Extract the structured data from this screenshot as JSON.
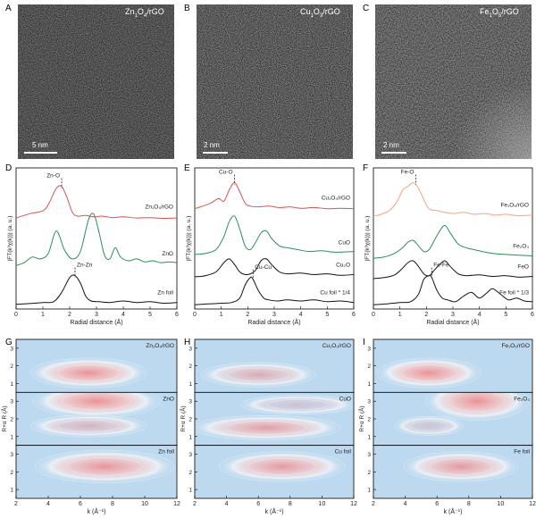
{
  "panel_labels": [
    "A",
    "B",
    "C",
    "D",
    "E",
    "F",
    "G",
    "H",
    "I"
  ],
  "tem": [
    {
      "label": "A",
      "title_main": "Zn",
      "title_sub1": "1",
      "title_mid": "O",
      "title_sub2": "4",
      "title_end": "/rGO",
      "scale": "5 nm"
    },
    {
      "label": "B",
      "title_main": "Cu",
      "title_sub1": "1",
      "title_mid": "O",
      "title_sub2": "3",
      "title_end": "/rGO",
      "scale": "2 nm"
    },
    {
      "label": "C",
      "title_main": "Fe",
      "title_sub1": "1",
      "title_mid": "O",
      "title_sub2": "5",
      "title_end": "/rGO",
      "scale": "2 nm"
    }
  ],
  "chart_data": [
    {
      "type": "line",
      "panel": "D",
      "xlabel": "Radial distance (Å)",
      "ylabel": "|FT(k³χ(k))| (a. u.)",
      "xlim": [
        0,
        6
      ],
      "xticks": [
        0,
        1,
        2,
        3,
        4,
        5,
        6
      ],
      "annotations": [
        {
          "text": "Zn-O",
          "x": 1.7
        },
        {
          "text": "Zn-Zn",
          "x": 2.2
        }
      ],
      "series": [
        {
          "name": "Zn₁O₄/rGO",
          "color": "#d9534f",
          "offset": 2.3,
          "x": [
            0,
            0.3,
            0.6,
            0.9,
            1.1,
            1.3,
            1.5,
            1.7,
            1.9,
            2.1,
            2.3,
            2.6,
            2.9,
            3.2,
            3.6,
            4,
            4.5,
            5,
            5.5,
            6
          ],
          "y": [
            0.05,
            0.12,
            0.18,
            0.22,
            0.3,
            0.55,
            0.85,
            0.9,
            0.6,
            0.2,
            0.1,
            0.12,
            0.08,
            0.1,
            0.06,
            0.08,
            0.05,
            0.06,
            0.04,
            0.05
          ]
        },
        {
          "name": "ZnO",
          "color": "#2a8f5a",
          "offset": 1.05,
          "x": [
            0,
            0.3,
            0.6,
            0.9,
            1.2,
            1.5,
            1.8,
            2.1,
            2.4,
            2.7,
            2.9,
            3.1,
            3.3,
            3.5,
            3.7,
            3.9,
            4.2,
            4.5,
            4.8,
            5.1,
            5.4,
            5.7,
            6
          ],
          "y": [
            0.02,
            0.1,
            0.25,
            0.2,
            0.35,
            0.95,
            0.45,
            0.2,
            0.4,
            1.25,
            1.4,
            0.9,
            0.3,
            0.2,
            0.5,
            0.25,
            0.15,
            0.2,
            0.12,
            0.15,
            0.1,
            0.12,
            0.1
          ]
        },
        {
          "name": "Zn foil",
          "color": "#111111",
          "offset": 0,
          "x": [
            0,
            0.5,
            1,
            1.4,
            1.7,
            2,
            2.2,
            2.4,
            2.6,
            2.8,
            3.1,
            3.5,
            4,
            4.5,
            5,
            5.5,
            6
          ],
          "y": [
            0.03,
            0.05,
            0.08,
            0.1,
            0.35,
            0.75,
            0.8,
            0.6,
            0.25,
            0.12,
            0.1,
            0.08,
            0.12,
            0.08,
            0.1,
            0.06,
            0.08
          ]
        }
      ]
    },
    {
      "type": "line",
      "panel": "E",
      "xlabel": "Radial distance (Å)",
      "ylabel": "|FT(k³χ(k))| (a. u.)",
      "xlim": [
        0,
        6
      ],
      "xticks": [
        0,
        1,
        2,
        3,
        4,
        5,
        6
      ],
      "annotations": [
        {
          "text": "Cu-O",
          "x": 1.5
        },
        {
          "text": "Cu-Cu",
          "x": 2.2
        }
      ],
      "series": [
        {
          "name": "Cu₁O₃/rGO",
          "color": "#d9534f",
          "offset": 2.55,
          "x": [
            0,
            0.3,
            0.6,
            0.9,
            1.1,
            1.3,
            1.5,
            1.7,
            1.9,
            2.1,
            2.4,
            2.8,
            3.2,
            3.6,
            4,
            4.5,
            5,
            5.5,
            6
          ],
          "y": [
            0.05,
            0.12,
            0.2,
            0.32,
            0.25,
            0.55,
            0.75,
            0.5,
            0.2,
            0.12,
            0.1,
            0.12,
            0.08,
            0.1,
            0.06,
            0.08,
            0.05,
            0.06,
            0.05
          ]
        },
        {
          "name": "CuO",
          "color": "#2a8f5a",
          "offset": 1.35,
          "x": [
            0,
            0.4,
            0.8,
            1.1,
            1.3,
            1.5,
            1.7,
            1.9,
            2.1,
            2.3,
            2.5,
            2.7,
            2.9,
            3.2,
            3.5,
            3.9,
            4.3,
            4.8,
            5.3,
            6
          ],
          "y": [
            0.02,
            0.05,
            0.15,
            0.5,
            0.9,
            1.05,
            0.7,
            0.25,
            0.15,
            0.35,
            0.6,
            0.65,
            0.45,
            0.25,
            0.2,
            0.15,
            0.1,
            0.12,
            0.08,
            0.1
          ]
        },
        {
          "name": "Cu₂O",
          "color": "#111111",
          "offset": 0.75,
          "x": [
            0,
            0.4,
            0.8,
            1.1,
            1.3,
            1.5,
            1.7,
            1.9,
            2.1,
            2.3,
            2.5,
            2.7,
            2.9,
            3.2,
            3.5,
            4,
            4.5,
            5,
            5.5,
            6
          ],
          "y": [
            0.02,
            0.05,
            0.15,
            0.4,
            0.5,
            0.35,
            0.15,
            0.08,
            0.1,
            0.2,
            0.45,
            0.5,
            0.35,
            0.15,
            0.1,
            0.12,
            0.08,
            0.1,
            0.06,
            0.08
          ]
        },
        {
          "name": "Cu foil * 1/4",
          "color": "#111111",
          "offset": 0,
          "x": [
            0,
            0.5,
            1,
            1.4,
            1.7,
            1.9,
            2.1,
            2.2,
            2.4,
            2.6,
            2.8,
            3.1,
            3.5,
            4,
            4.5,
            5,
            5.5,
            6
          ],
          "y": [
            0.02,
            0.04,
            0.06,
            0.08,
            0.2,
            0.55,
            0.75,
            0.7,
            0.4,
            0.2,
            0.15,
            0.12,
            0.15,
            0.12,
            0.15,
            0.1,
            0.12,
            0.08
          ]
        }
      ]
    },
    {
      "type": "line",
      "panel": "F",
      "xlabel": "Radial distance (Å)",
      "ylabel": "|FT(k³χ(k))| (a. u.)",
      "xlim": [
        0,
        6
      ],
      "xticks": [
        0,
        1,
        2,
        3,
        4,
        5,
        6
      ],
      "annotations": [
        {
          "text": "Fe-O",
          "x": 1.6
        },
        {
          "text": "Fe-Fe",
          "x": 2.2
        }
      ],
      "series": [
        {
          "name": "Fe₁O₅/rGO",
          "color": "#f0a58a",
          "offset": 2.35,
          "x": [
            0,
            0.3,
            0.6,
            0.9,
            1.1,
            1.3,
            1.5,
            1.7,
            1.9,
            2.1,
            2.4,
            2.7,
            3,
            3.4,
            3.8,
            4.2,
            4.6,
            5,
            5.5,
            6
          ],
          "y": [
            0.05,
            0.1,
            0.2,
            0.45,
            0.75,
            0.85,
            0.95,
            0.8,
            0.5,
            0.25,
            0.2,
            0.15,
            0.12,
            0.15,
            0.1,
            0.12,
            0.08,
            0.1,
            0.06,
            0.08
          ]
        },
        {
          "name": "Fe₂O₃",
          "color": "#2a8f5a",
          "offset": 1.25,
          "x": [
            0,
            0.4,
            0.8,
            1.1,
            1.3,
            1.5,
            1.7,
            1.9,
            2.1,
            2.3,
            2.5,
            2.7,
            2.9,
            3.2,
            3.5,
            3.8,
            4.1,
            4.5,
            5,
            5.5,
            6
          ],
          "y": [
            0.02,
            0.05,
            0.15,
            0.3,
            0.45,
            0.5,
            0.35,
            0.2,
            0.25,
            0.5,
            0.75,
            0.9,
            0.7,
            0.4,
            0.3,
            0.25,
            0.2,
            0.15,
            0.12,
            0.1,
            0.08
          ]
        },
        {
          "name": "FeO",
          "color": "#111111",
          "offset": 0.7,
          "x": [
            0,
            0.4,
            0.8,
            1.1,
            1.3,
            1.5,
            1.7,
            1.9,
            2.1,
            2.3,
            2.5,
            2.7,
            2.9,
            3.2,
            3.5,
            4,
            4.5,
            5,
            5.5,
            6
          ],
          "y": [
            0.02,
            0.05,
            0.12,
            0.3,
            0.45,
            0.5,
            0.35,
            0.15,
            0.1,
            0.25,
            0.4,
            0.5,
            0.35,
            0.15,
            0.1,
            0.12,
            0.08,
            0.1,
            0.06,
            0.08
          ]
        },
        {
          "name": "Fe foil * 1/3",
          "color": "#111111",
          "offset": 0,
          "x": [
            0,
            0.5,
            1,
            1.4,
            1.7,
            1.9,
            2.1,
            2.2,
            2.4,
            2.6,
            2.8,
            3.1,
            3.4,
            3.7,
            4,
            4.3,
            4.5,
            4.8,
            5.1,
            5.4,
            5.7,
            6
          ],
          "y": [
            0.02,
            0.04,
            0.08,
            0.1,
            0.3,
            0.7,
            0.8,
            0.75,
            0.4,
            0.2,
            0.15,
            0.1,
            0.25,
            0.35,
            0.2,
            0.35,
            0.45,
            0.3,
            0.15,
            0.2,
            0.12,
            0.1
          ]
        }
      ]
    },
    {
      "type": "heatmap",
      "panel": "G",
      "xlabel": "k (Å⁻¹)",
      "ylabel": "R+α R (Å)",
      "xlim": [
        2,
        12
      ],
      "xticks": [
        2,
        4,
        6,
        8,
        10,
        12
      ],
      "ylim": [
        0.5,
        3.5
      ],
      "rows": [
        {
          "name": "Zn₁O₄/rGO",
          "yticks": [
            1,
            2,
            3
          ],
          "hot": [
            {
              "kx": 6.5,
              "r": 1.6,
              "w": 5,
              "h": 0.55,
              "i": 0.9
            }
          ]
        },
        {
          "name": "ZnO",
          "yticks": [
            1,
            2,
            3
          ],
          "hot": [
            {
              "kx": 7,
              "r": 3.0,
              "w": 5.5,
              "h": 0.6,
              "i": 0.9
            },
            {
              "kx": 6.5,
              "r": 1.6,
              "w": 5,
              "h": 0.4,
              "i": 0.5
            }
          ]
        },
        {
          "name": "Zn foil",
          "yticks": [
            1,
            2,
            3
          ],
          "hot": [
            {
              "kx": 7.5,
              "r": 2.3,
              "w": 6,
              "h": 0.6,
              "i": 0.85
            }
          ]
        }
      ]
    },
    {
      "type": "heatmap",
      "panel": "H",
      "xlabel": "k (Å⁻¹)",
      "ylabel": "R+α R (Å)",
      "xlim": [
        2,
        12
      ],
      "xticks": [
        2,
        4,
        6,
        8,
        10,
        12
      ],
      "ylim": [
        0.5,
        3.5
      ],
      "rows": [
        {
          "name": "Cu₁O₃/rGO",
          "yticks": [
            1,
            2,
            3
          ],
          "hot": [
            {
              "kx": 6,
              "r": 1.5,
              "w": 5,
              "h": 0.45,
              "i": 0.6
            }
          ]
        },
        {
          "name": "CuO",
          "yticks": [
            1,
            2,
            3
          ],
          "hot": [
            {
              "kx": 6.5,
              "r": 1.5,
              "w": 6.5,
              "h": 0.45,
              "i": 0.75
            },
            {
              "kx": 8.5,
              "r": 2.8,
              "w": 5,
              "h": 0.35,
              "i": 0.3
            }
          ]
        },
        {
          "name": "Cu foil",
          "yticks": [
            1,
            2,
            3
          ],
          "hot": [
            {
              "kx": 7.5,
              "r": 2.3,
              "w": 5.5,
              "h": 0.55,
              "i": 0.8
            }
          ]
        }
      ]
    },
    {
      "type": "heatmap",
      "panel": "I",
      "xlabel": "k (Å⁻¹)",
      "ylabel": "R+α R (Å)",
      "xlim": [
        2,
        12
      ],
      "xticks": [
        2,
        4,
        6,
        8,
        10,
        12
      ],
      "ylim": [
        0.5,
        3.5
      ],
      "rows": [
        {
          "name": "Fe₁O₅/rGO",
          "yticks": [
            1,
            2,
            3
          ],
          "hot": [
            {
              "kx": 5.5,
              "r": 1.6,
              "w": 4.5,
              "h": 0.55,
              "i": 0.9
            }
          ]
        },
        {
          "name": "Fe₂O₃",
          "yticks": [
            1,
            2,
            3
          ],
          "hot": [
            {
              "kx": 8.5,
              "r": 3.0,
              "w": 4.5,
              "h": 0.7,
              "i": 0.9
            },
            {
              "kx": 5.5,
              "r": 1.6,
              "w": 3,
              "h": 0.35,
              "i": 0.3
            }
          ]
        },
        {
          "name": "Fe foil",
          "yticks": [
            1,
            2,
            3
          ],
          "hot": [
            {
              "kx": 7.5,
              "r": 2.3,
              "w": 5,
              "h": 0.55,
              "i": 0.8
            }
          ]
        }
      ]
    }
  ]
}
